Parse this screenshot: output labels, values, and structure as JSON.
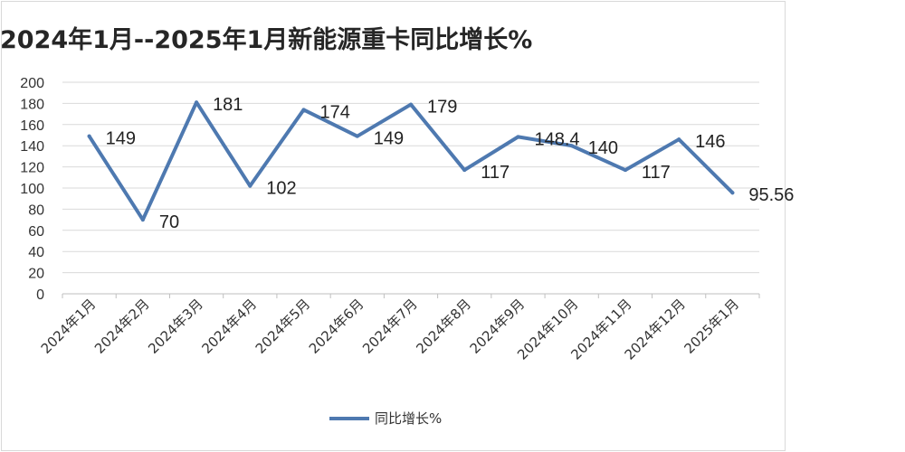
{
  "chart_data": {
    "type": "line",
    "title": "2024年1月--2025年1月新能源重卡同比增长%",
    "categories": [
      "2024年1月",
      "2024年2月",
      "2024年3月",
      "2024年4月",
      "2024年5月",
      "2024年6月",
      "2024年7月",
      "2024年8月",
      "2024年9月",
      "2024年10月",
      "2024年11月",
      "2024年12月",
      "2025年1月"
    ],
    "series": [
      {
        "name": "同比增长%",
        "values": [
          149,
          70,
          181,
          102,
          174,
          149,
          179,
          117,
          148.4,
          140,
          117,
          146,
          95.56
        ],
        "labels": [
          "149",
          "70",
          "181",
          "102",
          "174",
          "149",
          "179",
          "117",
          "148.4",
          "140",
          "117",
          "146",
          "95.56"
        ],
        "color": "#4e79b0"
      }
    ],
    "ylim": [
      0,
      200
    ],
    "yticks": [
      "0",
      "20",
      "40",
      "60",
      "80",
      "100",
      "120",
      "140",
      "160",
      "180",
      "200"
    ],
    "grid": true,
    "legend": "bottom"
  }
}
